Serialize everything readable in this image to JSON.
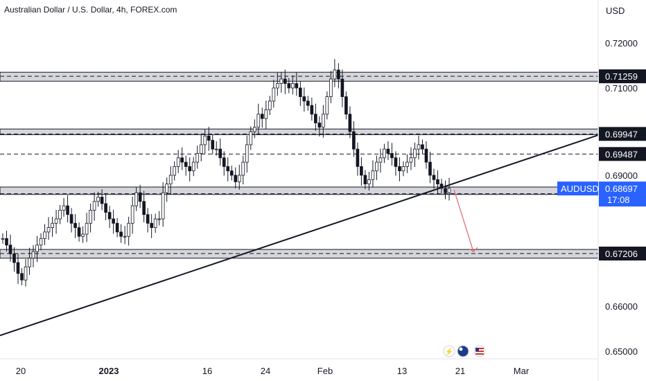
{
  "chart_data": {
    "type": "candlestick",
    "title": "Australian Dollar / U.S. Dollar, 4h, FOREX.com",
    "currency": "USD",
    "symbol": "AUDUSD",
    "last_price": "0.68697",
    "countdown": "17:08",
    "y_ticks": [
      "0.72000",
      "0.71000",
      "0.69000",
      "0.66000",
      "0.65000"
    ],
    "y_tick_values": [
      0.72,
      0.71,
      0.69,
      0.66,
      0.65
    ],
    "x_ticks": [
      "20",
      "2023",
      "16",
      "24",
      "Feb",
      "13",
      "21",
      "Mar"
    ],
    "ylim": [
      0.65,
      0.72
    ],
    "zones": [
      {
        "label": "0.71259",
        "value": 0.71259,
        "top": 0.7135,
        "bottom": 0.7115
      },
      {
        "label": "0.69947",
        "value": 0.69947,
        "top": 0.7006,
        "bottom": 0.6993
      },
      {
        "label": "0.68577",
        "value": 0.68577,
        "top": 0.6873,
        "bottom": 0.6856
      },
      {
        "label": "0.67206",
        "value": 0.67206,
        "top": 0.673,
        "bottom": 0.671
      }
    ],
    "level_lines": [
      {
        "label": "0.69487",
        "value": 0.69487
      }
    ],
    "series_price": [
      [
        0.6755,
        0.674,
        0.672,
        0.67,
        0.6675,
        0.666,
        0.669,
        0.671,
        0.6725,
        0.674,
        0.6755,
        0.677,
        0.678,
        0.679,
        0.68,
        0.682,
        0.683,
        0.681,
        0.679,
        0.678,
        0.676
      ],
      [
        0.6765,
        0.679,
        0.682,
        0.684,
        0.685,
        0.6835,
        0.6815,
        0.68,
        0.679,
        0.677,
        0.676,
        0.676,
        0.679,
        0.683,
        0.686,
        0.684,
        0.681,
        0.679,
        0.678,
        0.68
      ],
      [
        0.68,
        0.686,
        0.688,
        0.69,
        0.692,
        0.694,
        0.693,
        0.692,
        0.691,
        0.693,
        0.695,
        0.697,
        0.699,
        0.698,
        0.696,
        0.696,
        0.694,
        0.692,
        0.691,
        0.69,
        0.6885
      ],
      [
        0.69,
        0.693,
        0.697,
        0.7,
        0.701,
        0.704,
        0.703,
        0.705,
        0.707,
        0.71,
        0.711,
        0.712,
        0.711,
        0.71,
        0.711,
        0.71,
        0.708,
        0.707,
        0.706,
        0.704,
        0.702
      ],
      [
        0.701,
        0.704,
        0.708,
        0.712,
        0.714,
        0.712,
        0.708,
        0.704,
        0.7,
        0.696,
        0.692,
        0.69,
        0.688,
        0.689,
        0.691,
        0.693,
        0.694,
        0.696,
        0.695,
        0.694,
        0.692
      ],
      [
        0.691,
        0.692,
        0.693,
        0.694,
        0.696,
        0.697,
        0.696,
        0.693,
        0.69,
        0.689,
        0.688,
        0.687,
        0.686,
        0.687
      ]
    ],
    "trendline": {
      "from": {
        "x": "2022-12-14",
        "y": 0.6535
      },
      "to": {
        "x": "2023-02-27",
        "y": 0.6992
      }
    },
    "projection_arrow": {
      "from": 0.6867,
      "to": 0.6725
    }
  }
}
